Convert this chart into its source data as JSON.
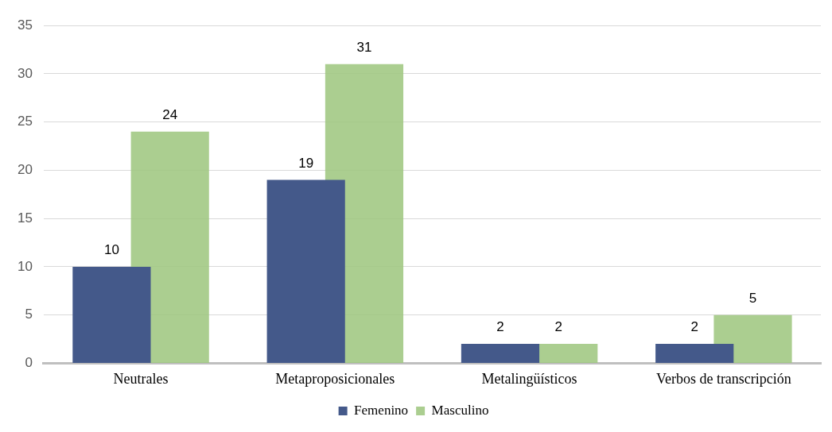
{
  "chart_data": {
    "type": "bar",
    "categories": [
      "Neutrales",
      "Metaproposicionales",
      "Metalingüísticos",
      "Verbos de transcripción"
    ],
    "series": [
      {
        "name": "Femenino",
        "color": "#44598a",
        "values": [
          10,
          19,
          2,
          2
        ]
      },
      {
        "name": "Masculino",
        "color": "#9cc67c",
        "values": [
          24,
          31,
          2,
          5
        ]
      }
    ],
    "ylim": [
      0,
      35
    ],
    "yticks": [
      0,
      5,
      10,
      15,
      20,
      25,
      30,
      35
    ],
    "grid": "y",
    "legend": "bottom",
    "data_labels": true
  }
}
